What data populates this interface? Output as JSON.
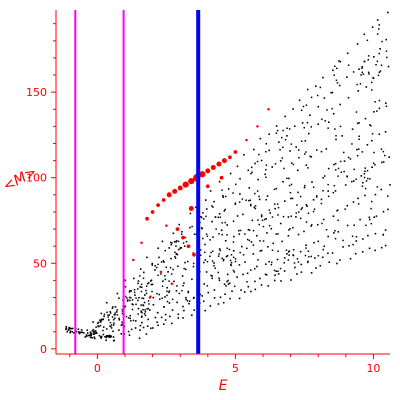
{
  "chart_data": {
    "type": "scatter",
    "title": "",
    "xlabel": "E",
    "ylabel": "<M>",
    "xlim": [
      -1.5,
      10.6
    ],
    "ylim": [
      -3,
      198
    ],
    "grid": false,
    "legend": "none",
    "xticks": [
      0,
      5,
      10
    ],
    "yticks": [
      0,
      50,
      100,
      150
    ],
    "colors": {
      "axis": "#ff0000",
      "tick_labels": "#ff0000",
      "axis_titles": "#ff0000",
      "points": "#000000",
      "highlight_points": "#ff0000",
      "vline_magenta": "#ff00ff",
      "vline_blue": "#0000ff"
    },
    "vertical_lines": [
      {
        "x": -0.8,
        "color": "#ff00ff"
      },
      {
        "x": 0.95,
        "color": "#ff00ff"
      },
      {
        "x": 3.65,
        "color": "#0000ff"
      }
    ],
    "families": [
      {
        "x": [
          -0.5,
          10.5
        ],
        "y": [
          8,
          197
        ]
      },
      {
        "x": [
          -0.3,
          10.5
        ],
        "y": [
          8,
          180
        ]
      },
      {
        "x": [
          -0.1,
          10.5
        ],
        "y": [
          8,
          165
        ]
      },
      {
        "x": [
          0.1,
          10.5
        ],
        "y": [
          8,
          145
        ]
      },
      {
        "x": [
          0.3,
          10.5
        ],
        "y": [
          8,
          128
        ]
      },
      {
        "x": [
          0.5,
          10.5
        ],
        "y": [
          8,
          112
        ]
      },
      {
        "x": [
          0.8,
          10.5
        ],
        "y": [
          8,
          96
        ]
      },
      {
        "x": [
          1.0,
          10.5
        ],
        "y": [
          8,
          82
        ]
      },
      {
        "x": [
          1.2,
          10.5
        ],
        "y": [
          8,
          70
        ]
      },
      {
        "x": [
          1.5,
          10.5
        ],
        "y": [
          8,
          62
        ]
      }
    ],
    "highlight_series": [
      {
        "x": 2.6,
        "y": 90,
        "size": 4
      },
      {
        "x": 2.8,
        "y": 92,
        "size": 4
      },
      {
        "x": 3.0,
        "y": 94,
        "size": 4
      },
      {
        "x": 3.2,
        "y": 96,
        "size": 5
      },
      {
        "x": 3.4,
        "y": 98,
        "size": 5
      },
      {
        "x": 3.6,
        "y": 100,
        "size": 6
      },
      {
        "x": 3.8,
        "y": 102,
        "size": 5
      },
      {
        "x": 4.0,
        "y": 104,
        "size": 4
      },
      {
        "x": 4.2,
        "y": 106,
        "size": 4
      },
      {
        "x": 4.4,
        "y": 108,
        "size": 4
      },
      {
        "x": 4.6,
        "y": 110,
        "size": 4
      },
      {
        "x": 4.8,
        "y": 112,
        "size": 3
      },
      {
        "x": 5.0,
        "y": 115,
        "size": 3
      },
      {
        "x": 5.4,
        "y": 122,
        "size": 2
      },
      {
        "x": 5.8,
        "y": 130,
        "size": 2
      },
      {
        "x": 6.2,
        "y": 140,
        "size": 2
      },
      {
        "x": 2.0,
        "y": 80,
        "size": 3
      },
      {
        "x": 2.2,
        "y": 84,
        "size": 3
      },
      {
        "x": 1.8,
        "y": 76,
        "size": 3
      },
      {
        "x": 2.4,
        "y": 87,
        "size": 3
      },
      {
        "x": 2.9,
        "y": 70,
        "size": 3
      },
      {
        "x": 3.1,
        "y": 65,
        "size": 3
      },
      {
        "x": 3.3,
        "y": 60,
        "size": 3
      },
      {
        "x": 3.5,
        "y": 55,
        "size": 3
      },
      {
        "x": 2.5,
        "y": 72,
        "size": 2
      },
      {
        "x": 1.6,
        "y": 62,
        "size": 2
      },
      {
        "x": 1.3,
        "y": 52,
        "size": 2
      },
      {
        "x": 1.0,
        "y": 40,
        "size": 2
      },
      {
        "x": 2.3,
        "y": 45,
        "size": 2
      },
      {
        "x": 3.4,
        "y": 82,
        "size": 4
      },
      {
        "x": 4.0,
        "y": 95,
        "size": 3
      },
      {
        "x": 4.5,
        "y": 100,
        "size": 3
      },
      {
        "x": 1.9,
        "y": 30,
        "size": 2
      },
      {
        "x": 2.7,
        "y": 38,
        "size": 2
      }
    ],
    "low_energy_cluster": {
      "x": [
        -1.2,
        0.6
      ],
      "y": [
        5,
        16
      ]
    }
  }
}
